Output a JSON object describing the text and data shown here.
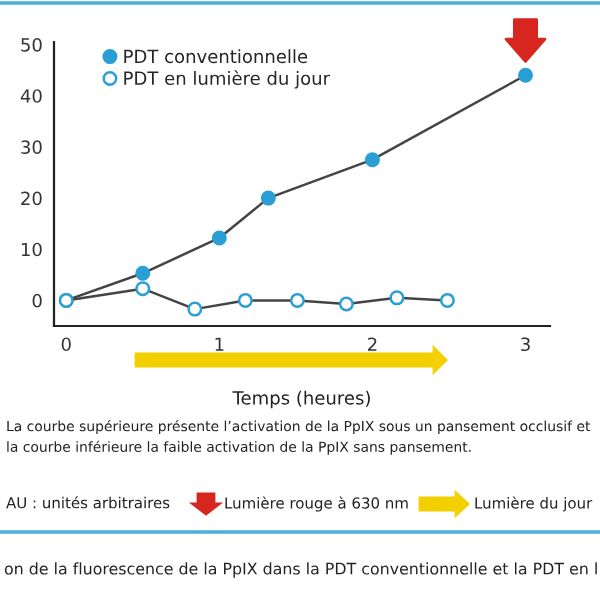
{
  "chart_data": {
    "type": "line",
    "xlabel": "Temps (heures)",
    "xlim": [
      -0.08,
      3.16
    ],
    "xticks": [
      0,
      1,
      2,
      3
    ],
    "ylim": [
      -5,
      50.5
    ],
    "yticks": [
      0,
      10,
      20,
      30,
      40,
      50
    ],
    "series": [
      {
        "name": "PDT conventionnelle",
        "color": "#2a9fd6",
        "x": [
          0,
          0.5,
          1,
          1.32,
          2,
          3
        ],
        "values": [
          0,
          5.3,
          12.2,
          20,
          27.5,
          44
        ]
      },
      {
        "name": "PDT en lumière du jour",
        "color": "#2a9fd6",
        "x": [
          0,
          0.5,
          0.84,
          1.17,
          1.51,
          1.83,
          2.16,
          2.49
        ],
        "values": [
          0,
          2.3,
          -1.7,
          0,
          0,
          -0.7,
          0.5,
          0
        ]
      }
    ],
    "marker": "circle",
    "line_style": "solid",
    "legend": "top left",
    "grid": false,
    "annotations": [
      "La courbe supérieure présente l’activation de la PpIX sous un pansement occlusif et la courbe inférieure la faible activation de la PpIX sans pansement.",
      "AU : unités arbitraires",
      "Lumière rouge à 630 nm",
      "Lumière du jour",
      "on de la fluorescence de la PpIX dans la PDT conventionnelle et la PDT en l"
    ]
  }
}
